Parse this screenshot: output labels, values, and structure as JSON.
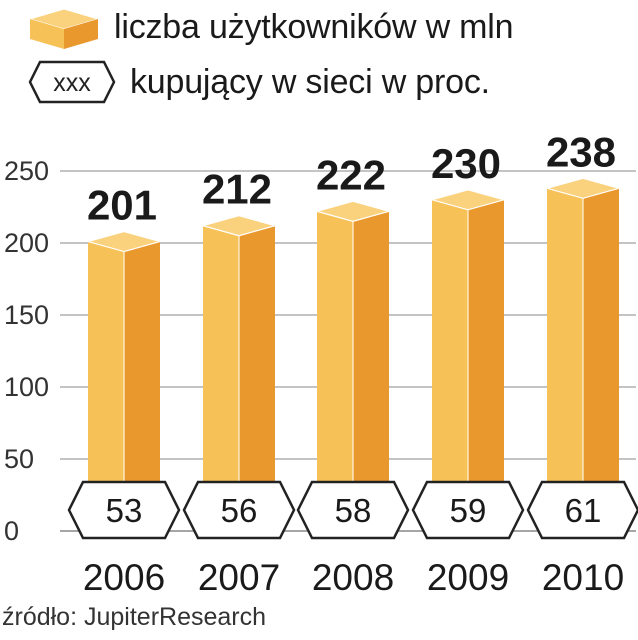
{
  "legend": {
    "users_label": "liczba użytkowników w mln",
    "buyers_symbol": "xxx",
    "buyers_label": "kupujący w sieci w proc."
  },
  "source": "źródło: JupiterResearch",
  "colors": {
    "bar_front": "#F6C258",
    "bar_side": "#E9982E",
    "bar_top": "#FAD27E",
    "grid": "#888888",
    "text": "#1a1a1a"
  },
  "chart_data": {
    "type": "bar",
    "categories": [
      "2006",
      "2007",
      "2008",
      "2009",
      "2010"
    ],
    "series": [
      {
        "name": "liczba użytkowników w mln",
        "values": [
          201,
          212,
          222,
          230,
          238
        ]
      },
      {
        "name": "kupujący w sieci w proc.",
        "values": [
          53,
          56,
          58,
          59,
          61
        ]
      }
    ],
    "y_ticks": [
      "0",
      "50",
      "100",
      "150",
      "200",
      "250"
    ],
    "ylim": [
      0,
      250
    ],
    "grid": true
  }
}
